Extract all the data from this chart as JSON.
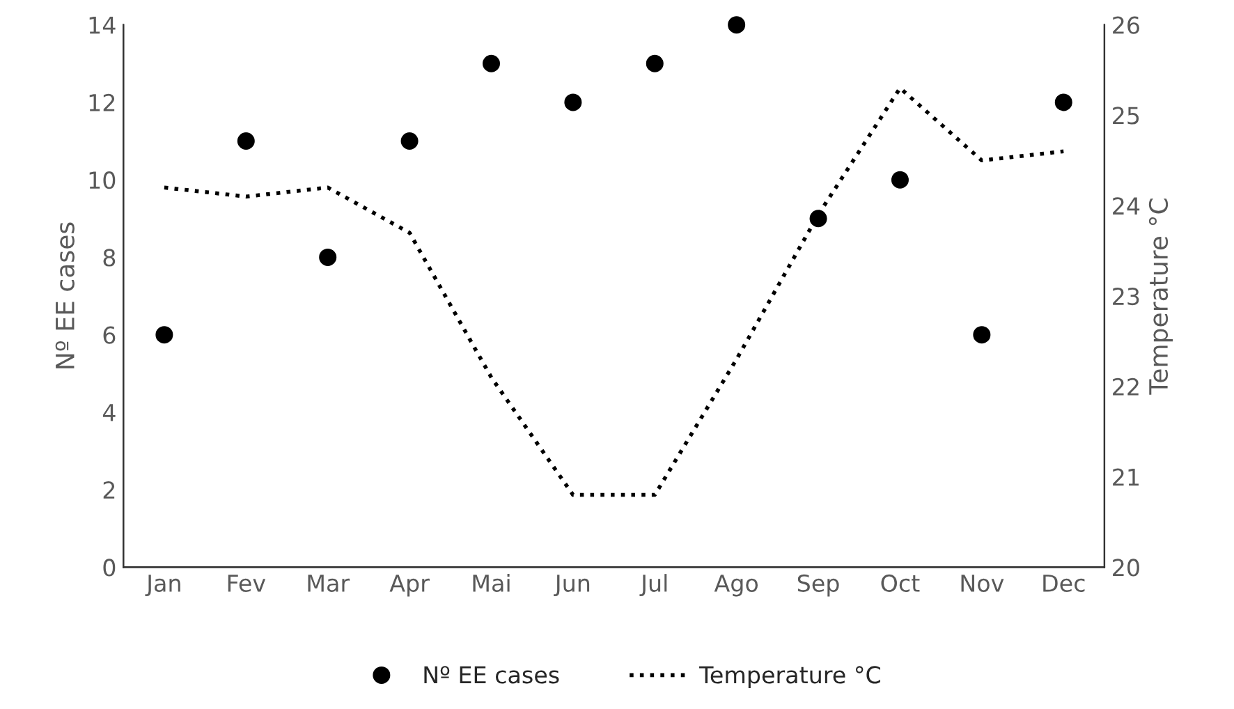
{
  "chart_data": {
    "type": "scatter",
    "ylabel": "Nº EE cases",
    "y2label": "Temperature °C",
    "categories": [
      "Jan",
      "Fev",
      "Mar",
      "Apr",
      "Mai",
      "Jun",
      "Jul",
      "Ago",
      "Sep",
      "Oct",
      "Nov",
      "Dec"
    ],
    "series": [
      {
        "name": "Nº EE cases",
        "color": "#000000",
        "marker": "circle",
        "values": [
          6,
          11,
          8,
          11,
          13,
          12,
          13,
          14,
          9,
          10,
          6,
          12
        ]
      },
      {
        "name": "Temperature °C",
        "type": "line",
        "axis": "y2",
        "color": "#000000",
        "line_style": "dotted",
        "values": [
          24.2,
          24.1,
          24.2,
          23.7,
          22.1,
          20.8,
          20.8,
          22.3,
          23.9,
          25.3,
          24.5,
          24.6
        ]
      }
    ],
    "ylim": [
      0,
      14
    ],
    "yticks": [
      0,
      2,
      4,
      6,
      8,
      10,
      12,
      14
    ],
    "y2lim": [
      20,
      26
    ],
    "y2ticks": [
      20,
      21,
      22,
      23,
      24,
      25,
      26
    ],
    "grid": false,
    "legend": "bottom"
  }
}
